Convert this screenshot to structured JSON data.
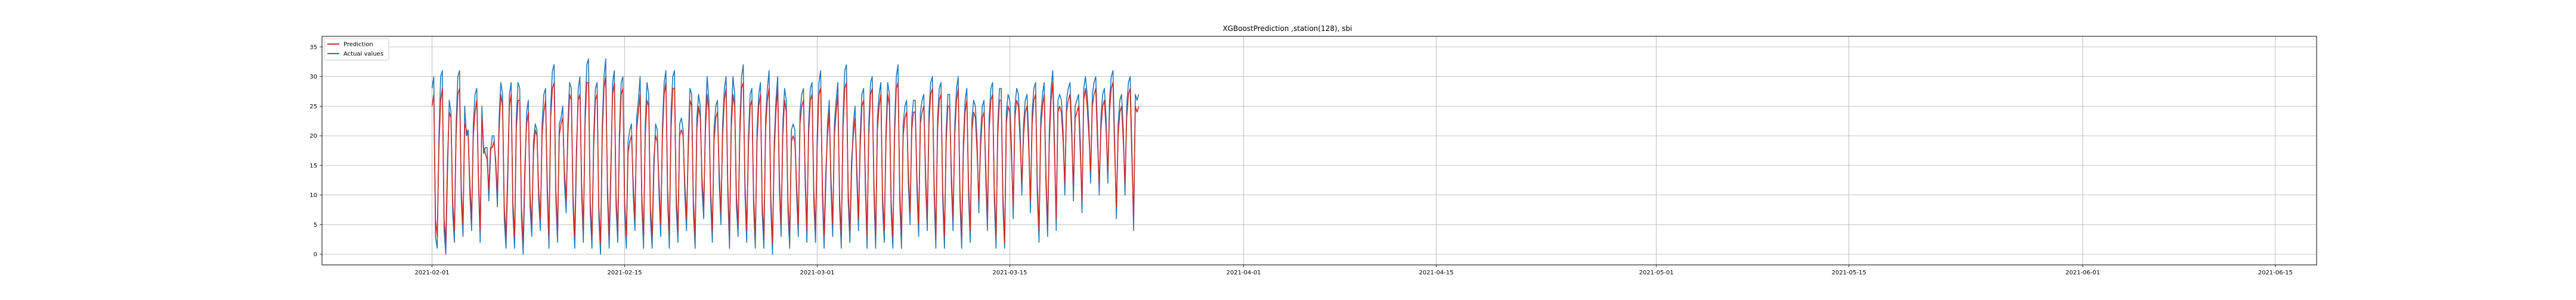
{
  "chart_data": {
    "type": "line",
    "title": "XGBoostPrediction ,station(128), sbi",
    "xlabel": "",
    "ylabel": "",
    "x_range": [
      "2021-01-24",
      "2021-06-18"
    ],
    "ylim": [
      -1.8,
      36.8
    ],
    "x_ticks": [
      "2021-02-01",
      "2021-02-15",
      "2021-03-01",
      "2021-03-15",
      "2021-04-01",
      "2021-04-15",
      "2021-05-01",
      "2021-05-15",
      "2021-06-01",
      "2021-06-15"
    ],
    "y_ticks": [
      0,
      5,
      10,
      15,
      20,
      25,
      30,
      35
    ],
    "grid": true,
    "legend": {
      "placement": "top-left"
    },
    "sampling": {
      "start": "2021-02-01T00:00",
      "interval": "3h"
    },
    "series": [
      {
        "name": "Prediction",
        "color": "#d62728",
        "values": [
          25,
          27,
          6,
          3,
          18,
          26,
          28,
          6,
          2,
          16,
          24,
          23,
          9,
          4,
          20,
          27,
          28,
          11,
          5,
          22,
          21,
          20,
          12,
          6,
          20,
          24,
          26,
          13,
          4,
          23,
          18,
          17,
          16,
          11,
          18,
          18,
          19,
          16,
          10,
          21,
          27,
          25,
          8,
          3,
          14,
          25,
          27,
          9,
          3,
          21,
          26,
          26,
          8,
          2,
          15,
          22,
          24,
          10,
          5,
          17,
          21,
          20,
          11,
          6,
          20,
          24,
          26,
          12,
          3,
          23,
          28,
          29,
          11,
          4,
          20,
          22,
          23,
          14,
          9,
          20,
          27,
          26,
          10,
          3,
          18,
          26,
          27,
          12,
          4,
          22,
          29,
          29,
          9,
          3,
          18,
          26,
          27,
          8,
          2,
          20,
          28,
          30,
          12,
          3,
          15,
          27,
          29,
          10,
          4,
          19,
          27,
          28,
          9,
          3,
          17,
          19,
          20,
          12,
          6,
          21,
          24,
          27,
          10,
          3,
          20,
          26,
          25,
          8,
          3,
          16,
          20,
          19,
          12,
          5,
          20,
          27,
          29,
          11,
          3,
          21,
          28,
          28,
          10,
          4,
          20,
          21,
          20,
          12,
          6,
          17,
          26,
          25,
          9,
          3,
          21,
          25,
          23,
          13,
          8,
          21,
          27,
          24,
          11,
          4,
          19,
          23,
          24,
          14,
          7,
          20,
          26,
          28,
          12,
          3,
          21,
          27,
          25,
          10,
          5,
          20,
          28,
          29,
          12,
          4,
          18,
          25,
          26,
          10,
          3,
          19,
          25,
          27,
          9,
          3,
          21,
          26,
          28,
          10,
          2,
          17,
          24,
          28,
          13,
          5,
          20,
          26,
          24,
          9,
          3,
          19,
          20,
          19,
          12,
          5,
          22,
          25,
          26,
          14,
          4,
          20,
          26,
          27,
          11,
          4,
          18,
          27,
          28,
          12,
          3,
          14,
          20,
          24,
          13,
          5,
          20,
          24,
          27,
          10,
          3,
          21,
          28,
          29,
          11,
          4,
          16,
          20,
          23,
          15,
          6,
          18,
          25,
          26,
          13,
          3,
          20,
          27,
          28,
          12,
          3,
          21,
          25,
          27,
          10,
          4,
          19,
          27,
          25,
          9,
          3,
          20,
          28,
          29,
          11,
          3,
          20,
          23,
          24,
          14,
          7,
          21,
          24,
          24,
          13,
          5,
          22,
          24,
          25,
          14,
          6,
          22,
          27,
          28,
          12,
          3,
          21,
          26,
          27,
          11,
          3,
          19,
          25,
          25,
          14,
          6,
          20,
          26,
          28,
          11,
          3,
          17,
          24,
          26,
          12,
          4,
          21,
          24,
          23,
          17,
          9,
          18,
          23,
          24,
          15,
          6,
          21,
          26,
          27,
          11,
          3,
          20,
          26,
          26,
          10,
          2,
          22,
          25,
          24,
          16,
          8,
          23,
          26,
          25,
          19,
          12,
          20,
          24,
          25,
          18,
          9,
          22,
          26,
          27,
          12,
          4,
          21,
          25,
          27,
          14,
          5,
          19,
          26,
          29,
          17,
          6,
          24,
          25,
          24,
          19,
          12,
          24,
          26,
          27,
          20,
          11,
          23,
          24,
          25,
          17,
          9,
          26,
          28,
          25,
          20,
          14,
          25,
          27,
          28,
          19,
          12,
          21,
          25,
          26,
          21,
          14,
          24,
          28,
          29,
          17,
          8,
          20,
          24,
          25,
          19,
          12,
          23,
          27,
          28,
          16,
          6,
          25,
          24,
          25
        ],
        "legend_label": "Prediction"
      },
      {
        "name": "Actual values",
        "color": "#1f77b4",
        "values": [
          28,
          30,
          3,
          1,
          20,
          30,
          31,
          4,
          0,
          14,
          26,
          24,
          7,
          2,
          22,
          30,
          31,
          9,
          3,
          25,
          20,
          21,
          10,
          4,
          22,
          27,
          28,
          12,
          2,
          25,
          17,
          18,
          18,
          9,
          17,
          20,
          20,
          15,
          8,
          23,
          29,
          27,
          6,
          1,
          12,
          27,
          29,
          7,
          1,
          23,
          29,
          28,
          6,
          0,
          13,
          24,
          26,
          8,
          3,
          19,
          22,
          21,
          9,
          4,
          22,
          27,
          28,
          10,
          1,
          25,
          31,
          32,
          9,
          2,
          22,
          23,
          25,
          12,
          7,
          22,
          29,
          28,
          8,
          1,
          16,
          28,
          30,
          10,
          2,
          24,
          32,
          33,
          7,
          1,
          20,
          28,
          29,
          6,
          0,
          22,
          30,
          33,
          10,
          1,
          13,
          29,
          31,
          8,
          2,
          21,
          29,
          30,
          7,
          1,
          19,
          21,
          22,
          10,
          4,
          23,
          26,
          30,
          8,
          1,
          22,
          29,
          27,
          6,
          1,
          14,
          22,
          21,
          10,
          3,
          22,
          29,
          31,
          9,
          1,
          24,
          30,
          31,
          8,
          2,
          22,
          23,
          21,
          10,
          4,
          19,
          28,
          27,
          7,
          1,
          23,
          27,
          25,
          11,
          6,
          23,
          30,
          26,
          9,
          2,
          21,
          25,
          26,
          12,
          5,
          22,
          28,
          30,
          10,
          1,
          23,
          30,
          27,
          8,
          3,
          22,
          30,
          32,
          10,
          2,
          20,
          27,
          28,
          8,
          1,
          21,
          27,
          29,
          7,
          1,
          23,
          28,
          31,
          8,
          0,
          19,
          26,
          30,
          11,
          3,
          22,
          28,
          26,
          7,
          1,
          21,
          22,
          21,
          10,
          3,
          24,
          27,
          28,
          12,
          2,
          22,
          28,
          29,
          9,
          2,
          20,
          29,
          31,
          10,
          1,
          12,
          22,
          26,
          11,
          3,
          22,
          26,
          29,
          8,
          1,
          23,
          31,
          32,
          9,
          2,
          14,
          22,
          25,
          13,
          4,
          20,
          27,
          28,
          11,
          1,
          22,
          29,
          30,
          10,
          1,
          23,
          27,
          29,
          8,
          2,
          21,
          29,
          27,
          7,
          1,
          22,
          30,
          32,
          9,
          1,
          22,
          25,
          26,
          12,
          5,
          23,
          26,
          26,
          11,
          3,
          24,
          26,
          27,
          12,
          4,
          24,
          29,
          30,
          10,
          1,
          23,
          28,
          29,
          9,
          1,
          21,
          27,
          27,
          12,
          4,
          22,
          28,
          30,
          9,
          1,
          19,
          26,
          28,
          10,
          2,
          23,
          26,
          25,
          19,
          7,
          20,
          25,
          26,
          13,
          4,
          23,
          28,
          29,
          9,
          1,
          22,
          28,
          28,
          8,
          1,
          24,
          27,
          26,
          18,
          6,
          25,
          28,
          27,
          21,
          10,
          22,
          26,
          27,
          20,
          7,
          24,
          28,
          29,
          10,
          2,
          23,
          27,
          29,
          12,
          3,
          21,
          28,
          31,
          19,
          4,
          26,
          27,
          26,
          21,
          10,
          26,
          28,
          29,
          22,
          9,
          25,
          26,
          27,
          19,
          7,
          28,
          30,
          27,
          22,
          12,
          27,
          29,
          30,
          21,
          10,
          23,
          27,
          28,
          23,
          12,
          26,
          30,
          31,
          19,
          6,
          22,
          26,
          27,
          21,
          10,
          25,
          29,
          30,
          18,
          4,
          27,
          26,
          27
        ],
        "legend_label": "Actual values"
      }
    ]
  }
}
